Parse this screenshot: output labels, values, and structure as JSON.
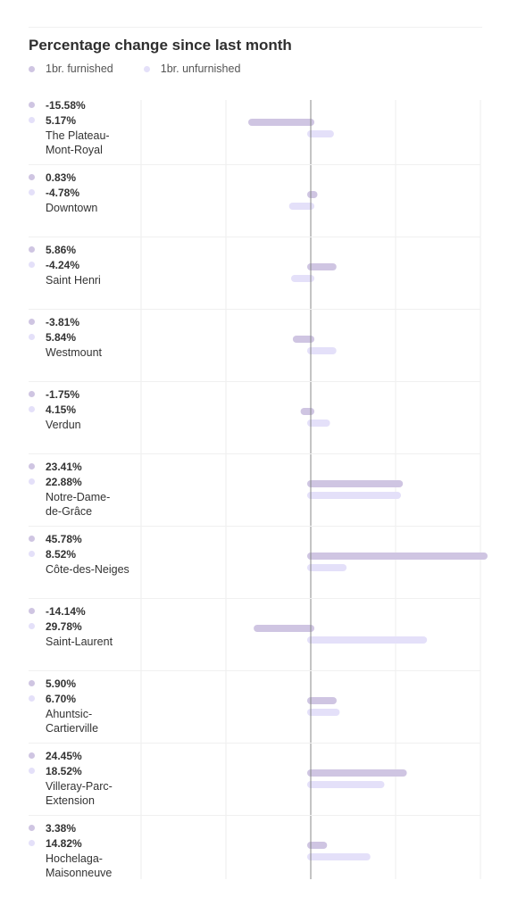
{
  "title": "Percentage change since last month",
  "legend": [
    {
      "label": "1br. furnished",
      "color": "#cfc5e2"
    },
    {
      "label": "1br. unfurnished",
      "color": "#e4e0f9"
    }
  ],
  "chart_data": {
    "type": "bar",
    "orientation": "horizontal",
    "title": "Percentage change since last month",
    "categories": [
      "The Plateau-Mont-Royal",
      "Downtown",
      "Saint Henri",
      "Westmount",
      "Verdun",
      "Notre-Dame-de-Grâce",
      "Côte-des-Neiges",
      "Saint-Laurent",
      "Ahuntsic-Cartierville",
      "Villeray-Parc-Extension",
      "Hochelaga-Maisonneuve"
    ],
    "series": [
      {
        "name": "1br. furnished",
        "values": [
          -15.58,
          0.83,
          5.86,
          -3.81,
          -1.75,
          23.41,
          45.78,
          -14.14,
          5.9,
          24.45,
          3.38
        ]
      },
      {
        "name": "1br. unfurnished",
        "values": [
          5.17,
          -4.78,
          -4.24,
          5.84,
          4.15,
          22.88,
          8.52,
          29.78,
          6.7,
          18.52,
          14.82
        ]
      }
    ],
    "xlim": [
      -40,
      45.78
    ],
    "grid": true
  },
  "rows": [
    {
      "label": [
        "The Plateau-",
        "Mont-Royal"
      ],
      "furnished_text": "-15.58%",
      "unfurnished_text": "5.17%"
    },
    {
      "label": [
        "Downtown"
      ],
      "furnished_text": "0.83%",
      "unfurnished_text": "-4.78%"
    },
    {
      "label": [
        "Saint Henri"
      ],
      "furnished_text": "5.86%",
      "unfurnished_text": "-4.24%"
    },
    {
      "label": [
        "Westmount"
      ],
      "furnished_text": "-3.81%",
      "unfurnished_text": "5.84%"
    },
    {
      "label": [
        "Verdun"
      ],
      "furnished_text": "-1.75%",
      "unfurnished_text": "4.15%"
    },
    {
      "label": [
        "Notre-Dame-",
        "de-Grâce"
      ],
      "furnished_text": "23.41%",
      "unfurnished_text": "22.88%"
    },
    {
      "label": [
        "Côte-des-Neiges"
      ],
      "furnished_text": "45.78%",
      "unfurnished_text": "8.52%"
    },
    {
      "label": [
        "Saint-Laurent"
      ],
      "furnished_text": "-14.14%",
      "unfurnished_text": "29.78%"
    },
    {
      "label": [
        "Ahuntsic-",
        "Cartierville"
      ],
      "furnished_text": "5.90%",
      "unfurnished_text": "6.70%"
    },
    {
      "label": [
        "Villeray-Parc-",
        "Extension"
      ],
      "furnished_text": "24.45%",
      "unfurnished_text": "18.52%"
    },
    {
      "label": [
        "Hochelaga-",
        "Maisonneuve"
      ],
      "furnished_text": "3.38%",
      "unfurnished_text": "14.82%"
    }
  ]
}
